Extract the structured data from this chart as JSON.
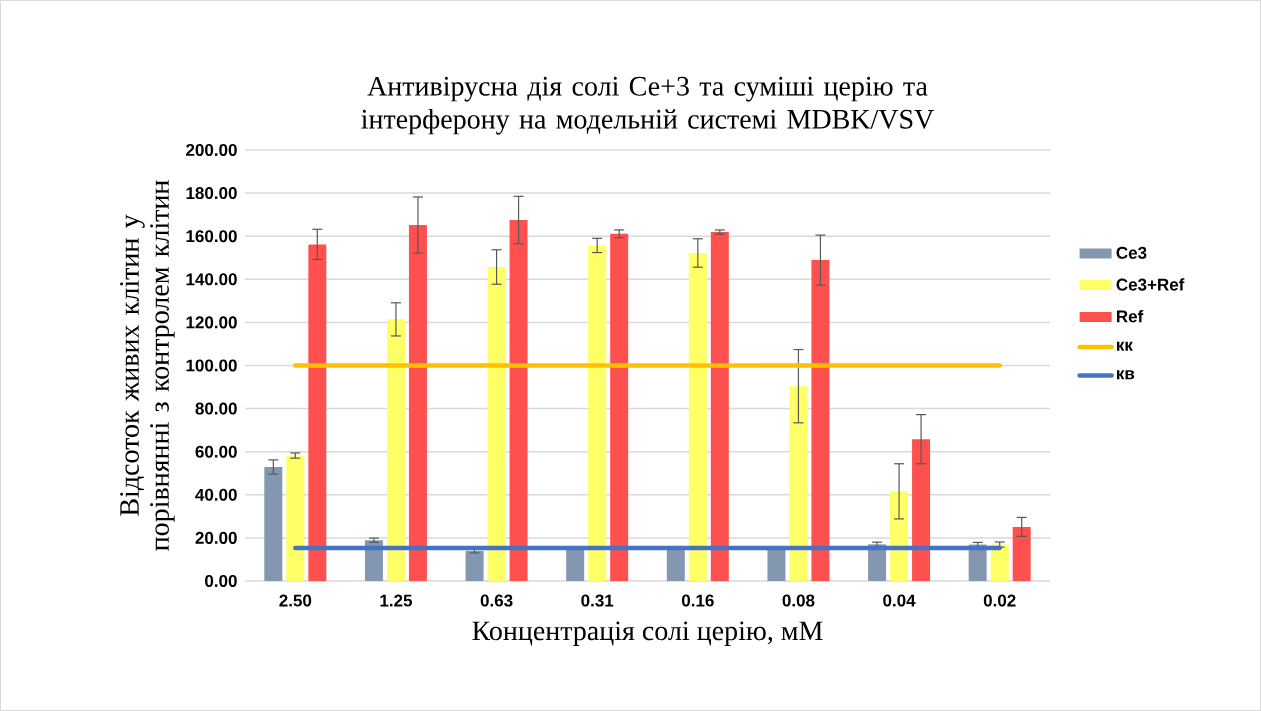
{
  "chart_data": {
    "type": "bar",
    "title": "Антивірусна дія солі Се+3 та суміші церію та інтерферону на модельній системі MDBK/VSV",
    "xlabel": "Концентрація солі церію, мМ",
    "ylabel": "Відсоток живих клітин у порівнянні з контролем клітин",
    "categories": [
      "2.50",
      "1.25",
      "0.63",
      "0.31",
      "0.16",
      "0.08",
      "0.04",
      "0.02"
    ],
    "series": [
      {
        "name": "Ce3",
        "color": "#8497b0",
        "values": [
          52.9,
          18.9,
          14,
          15,
          15,
          15,
          17.0,
          16.9
        ],
        "errors": [
          3.3,
          1,
          1,
          null,
          null,
          null,
          1,
          1
        ]
      },
      {
        "name": "Ce3+Ref",
        "color": "#ffff66",
        "values": [
          58.2,
          121.4,
          145.7,
          155.7,
          152.2,
          90.4,
          41.6,
          16.9
        ],
        "errors": [
          1.2,
          7.7,
          8,
          3.3,
          6.6,
          17,
          12.8,
          1.2
        ]
      },
      {
        "name": "Ref",
        "color": "#ff5050",
        "values": [
          156.2,
          165.2,
          167.5,
          161.1,
          161.9,
          148.9,
          65.8,
          25.1
        ],
        "errors": [
          7,
          13,
          11,
          1.8,
          1,
          11.6,
          11.4,
          4.4
        ]
      },
      {
        "name": "кк",
        "type": "line",
        "color": "#ffc000",
        "values": [
          100,
          100,
          100,
          100,
          100,
          100,
          100,
          100
        ]
      },
      {
        "name": "кв",
        "type": "line",
        "color": "#4472c4",
        "values": [
          15.3,
          15.3,
          15.3,
          15.3,
          15.3,
          15.3,
          15.3,
          15.3
        ]
      }
    ],
    "ylim": [
      0,
      200
    ],
    "yticks": [
      {
        "value": 0,
        "label": "0.00"
      },
      {
        "value": 20,
        "label": "20.00"
      },
      {
        "value": 40,
        "label": "40.00"
      },
      {
        "value": 60,
        "label": "60.00"
      },
      {
        "value": 80,
        "label": "80.00"
      },
      {
        "value": 100,
        "label": "100.00"
      },
      {
        "value": 120,
        "label": "120.00"
      },
      {
        "value": 140,
        "label": "140.00"
      },
      {
        "value": 160,
        "label": "160.00"
      },
      {
        "value": 180,
        "label": "180.00"
      },
      {
        "value": 200,
        "label": "200.00"
      }
    ],
    "grid": "y",
    "legend": "right"
  }
}
